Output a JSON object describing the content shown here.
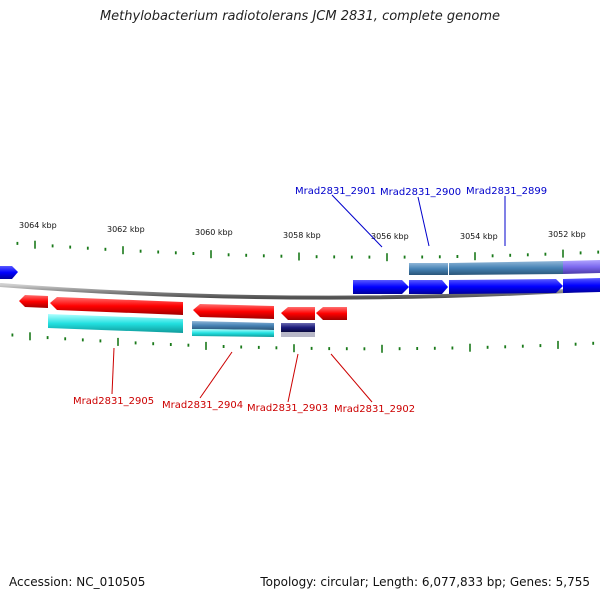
{
  "title": "Methylobacterium radiotolerans JCM 2831, complete genome",
  "footer": {
    "accession": "Accession: NC_010505",
    "topology": "Topology: circular; Length: 6,077,833 bp; Genes: 5,755"
  },
  "scale_labels": [
    "3064 kbp",
    "3062 kbp",
    "3060 kbp",
    "3058 kbp",
    "3056 kbp",
    "3054 kbp",
    "3052 kbp"
  ],
  "gene_labels_top": [
    "Mrad2831_2901",
    "Mrad2831_2900",
    "Mrad2831_2899"
  ],
  "gene_labels_bottom": [
    "Mrad2831_2905",
    "Mrad2831_2904",
    "Mrad2831_2903",
    "Mrad2831_2902"
  ],
  "colors": {
    "forward_gene": "#0000ff",
    "reverse_gene": "#ff0000",
    "top_label": "#0000cc",
    "bottom_label": "#cc0000",
    "tick": "#1a7a1a",
    "backbone": "#8a8a8a",
    "feature_steelblue": "#4682b4",
    "feature_cyan": "#22e0e0",
    "feature_purple": "#7b68ee",
    "feature_navy": "#1a1a7a"
  }
}
